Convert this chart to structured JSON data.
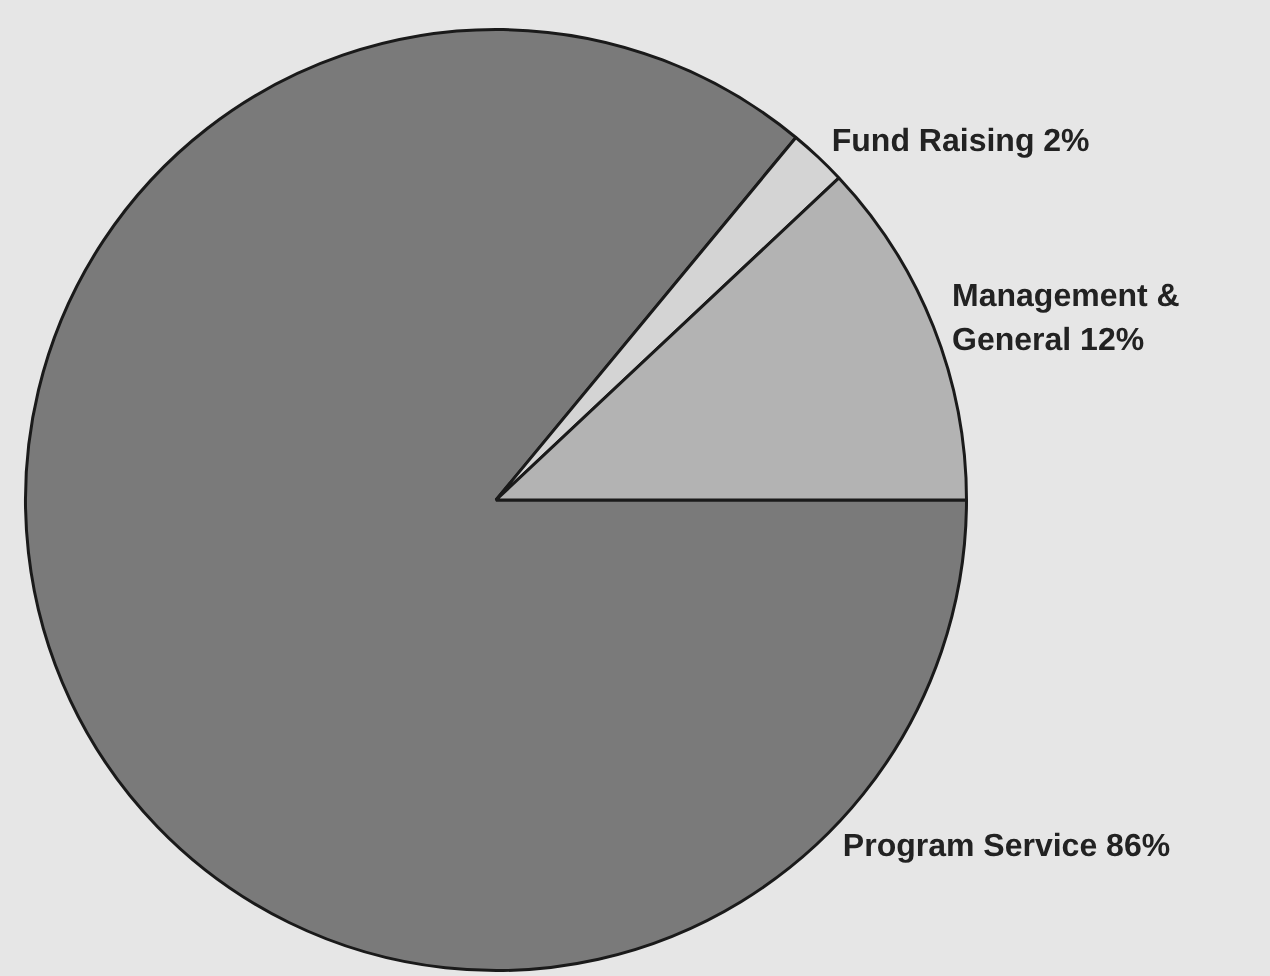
{
  "chart_data": {
    "type": "pie",
    "categories": [
      "Program Service",
      "Fund Raising",
      "Management & General"
    ],
    "values": [
      86,
      2,
      12
    ],
    "value_labels": [
      "86%",
      "2%",
      "12%"
    ],
    "colors": [
      "#7a7a7a",
      "#d4d4d4",
      "#b3b3b3"
    ],
    "legend": false
  }
}
